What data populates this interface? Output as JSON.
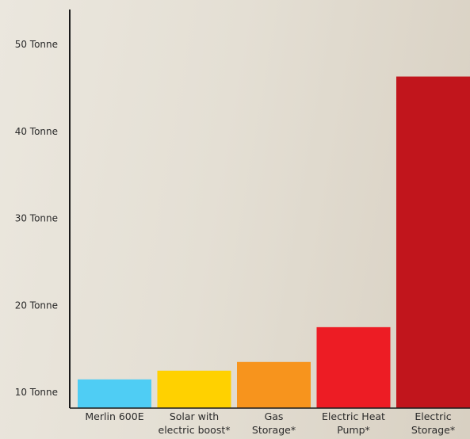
{
  "chart_data": {
    "type": "bar",
    "title": "",
    "xlabel": "",
    "ylabel": "",
    "ylim": [
      8.2,
      54
    ],
    "yticks": [
      10,
      20,
      30,
      40,
      50
    ],
    "ytick_labels": [
      "10 Tonne",
      "20 Tonne",
      "30 Tonne",
      "40 Tonne",
      "50 Tonne"
    ],
    "grid": false,
    "categories": [
      [
        "Merlin 600E"
      ],
      [
        "Solar with",
        "electric boost*"
      ],
      [
        "Gas",
        "Storage*"
      ],
      [
        "Electric Heat",
        "Pump*"
      ],
      [
        "Electric",
        "Storage*"
      ]
    ],
    "values": [
      11.5,
      12.5,
      13.5,
      17.5,
      46.3
    ],
    "colors": [
      "#4fcdf4",
      "#ffd100",
      "#f7941d",
      "#ed1c24",
      "#c1151c"
    ]
  }
}
